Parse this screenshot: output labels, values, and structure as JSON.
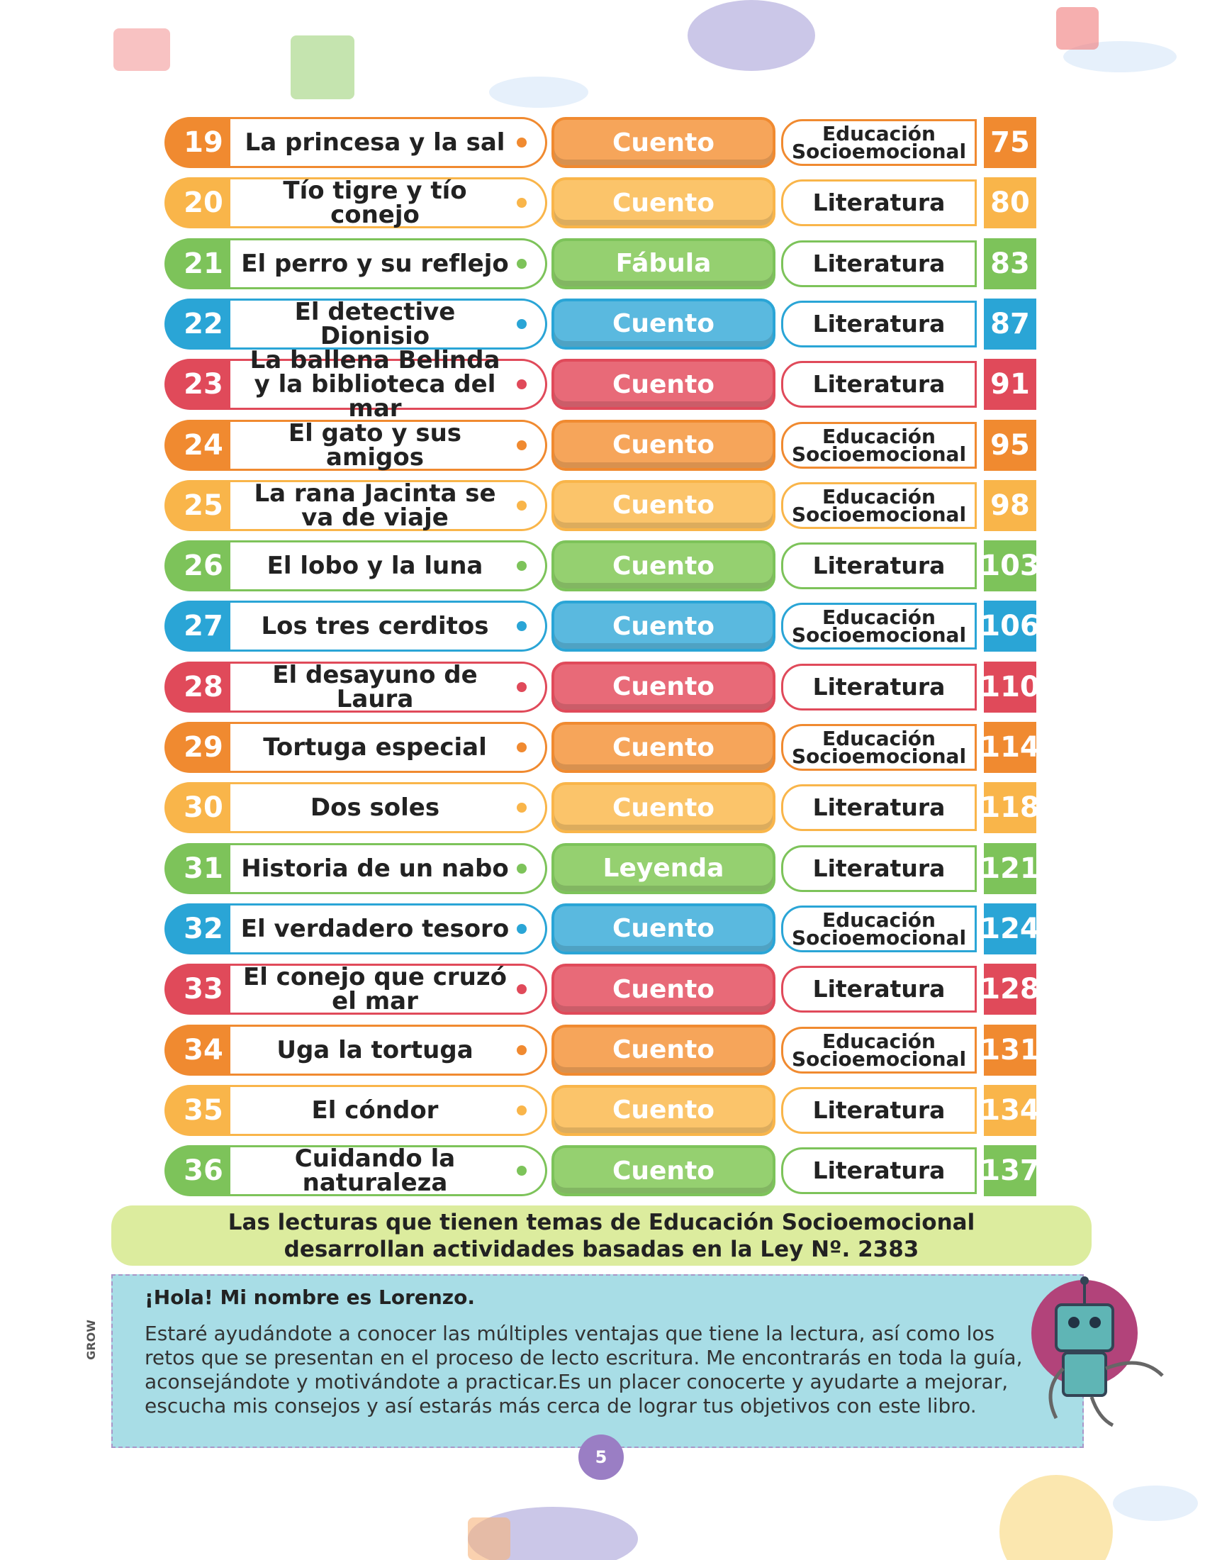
{
  "rows": [
    {
      "number": 19,
      "title": "La princesa y la sal",
      "genre": "Cuento",
      "area": "Educación Socioemocional",
      "page": 75
    },
    {
      "number": 20,
      "title": "Tío tigre y tío conejo",
      "genre": "Cuento",
      "area": "Literatura",
      "page": 80
    },
    {
      "number": 21,
      "title": "El perro y su reflejo",
      "genre": "Fábula",
      "area": "Literatura",
      "page": 83
    },
    {
      "number": 22,
      "title": "El detective Dionisio",
      "genre": "Cuento",
      "area": "Literatura",
      "page": 87
    },
    {
      "number": 23,
      "title": "La ballena Belinda y la biblioteca del mar",
      "genre": "Cuento",
      "area": "Literatura",
      "page": 91
    },
    {
      "number": 24,
      "title": "El gato y sus amigos",
      "genre": "Cuento",
      "area": "Educación Socioemocional",
      "page": 95
    },
    {
      "number": 25,
      "title": "La rana Jacinta se va de viaje",
      "genre": "Cuento",
      "area": "Educación Socioemocional",
      "page": 98
    },
    {
      "number": 26,
      "title": "El lobo y la luna",
      "genre": "Cuento",
      "area": "Literatura",
      "page": 103
    },
    {
      "number": 27,
      "title": "Los tres cerditos",
      "genre": "Cuento",
      "area": "Educación Socioemocional",
      "page": 106
    },
    {
      "number": 28,
      "title": "El desayuno de Laura",
      "genre": "Cuento",
      "area": "Literatura",
      "page": 110
    },
    {
      "number": 29,
      "title": "Tortuga especial",
      "genre": "Cuento",
      "area": "Educación Socioemocional",
      "page": 114
    },
    {
      "number": 30,
      "title": "Dos soles",
      "genre": "Cuento",
      "area": "Literatura",
      "page": 118
    },
    {
      "number": 31,
      "title": "Historia de un nabo",
      "genre": "Leyenda",
      "area": "Literatura",
      "page": 121
    },
    {
      "number": 32,
      "title": "El verdadero tesoro",
      "genre": "Cuento",
      "area": "Educación Socioemocional",
      "page": 124
    },
    {
      "number": 33,
      "title": "El conejo que cruzó el mar",
      "genre": "Cuento",
      "area": "Literatura",
      "page": 128
    },
    {
      "number": 34,
      "title": "Uga la tortuga",
      "genre": "Cuento",
      "area": "Educación Socioemocional",
      "page": 131
    },
    {
      "number": 35,
      "title": "El cóndor",
      "genre": "Cuento",
      "area": "Literatura",
      "page": 134
    },
    {
      "number": 36,
      "title": "Cuidando la naturaleza",
      "genre": "Cuento",
      "area": "Literatura",
      "page": 137
    }
  ],
  "note": "Las lecturas que tienen temas de Educación Socioemocional desarrollan actividades basadas en la Ley Nº. 2383",
  "intro": {
    "greeting": "¡Hola! Mi nombre es Lorenzo.",
    "body": "Estaré ayudándote a conocer las múltiples ventajas que tiene la lectura, así como los retos que se presentan en el proceso de lecto escritura. Me encontrarás en toda la guía, aconsejándote y motivándote a practicar.Es un placer conocerte y ayudarte a mejorar, escucha mis consejos y así estarás más cerca de lograr tus objetivos con este libro."
  },
  "page_number": "5",
  "brand": "GROW"
}
